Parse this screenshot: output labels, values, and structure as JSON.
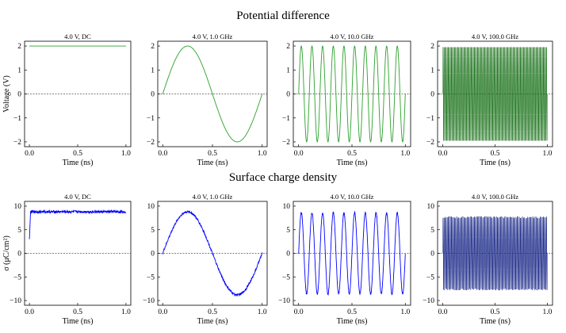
{
  "figure": {
    "top_title": "Potential difference",
    "bottom_title": "Surface charge density"
  },
  "chart_data": [
    {
      "type": "line",
      "title": "4.0 V, DC",
      "xlabel": "Time (ns)",
      "ylabel": "Voltage (V)",
      "signal": "dc",
      "amplitude": 2.0,
      "frequency_ghz": 0,
      "xlim": [
        -0.05,
        1.05
      ],
      "ylim": [
        -2.2,
        2.2
      ],
      "xticks": [
        0.0,
        0.5,
        1.0
      ],
      "yticks": [
        -2,
        -1,
        0,
        1,
        2
      ],
      "color": "#2ca02c",
      "zero_line": true
    },
    {
      "type": "line",
      "title": "4.0 V, 1.0 GHz",
      "xlabel": "Time (ns)",
      "ylabel": "",
      "signal": "sine",
      "amplitude": 2.0,
      "frequency_ghz": 1.0,
      "xlim": [
        -0.05,
        1.05
      ],
      "ylim": [
        -2.2,
        2.2
      ],
      "xticks": [
        0.0,
        0.5,
        1.0
      ],
      "yticks": [
        -2,
        -1,
        0,
        1,
        2
      ],
      "color": "#2ca02c",
      "zero_line": true
    },
    {
      "type": "line",
      "title": "4.0 V, 10.0 GHz",
      "xlabel": "Time (ns)",
      "ylabel": "",
      "signal": "sine",
      "amplitude": 2.0,
      "frequency_ghz": 10.0,
      "xlim": [
        -0.05,
        1.05
      ],
      "ylim": [
        -2.2,
        2.2
      ],
      "xticks": [
        0.0,
        0.5,
        1.0
      ],
      "yticks": [
        -2,
        -1,
        0,
        1,
        2
      ],
      "color": "#2ca02c",
      "zero_line": true
    },
    {
      "type": "line",
      "title": "4.0 V, 100.0 GHz",
      "xlabel": "Time (ns)",
      "ylabel": "",
      "signal": "sine",
      "amplitude": 2.0,
      "frequency_ghz": 100.0,
      "xlim": [
        -0.05,
        1.05
      ],
      "ylim": [
        -2.2,
        2.2
      ],
      "xticks": [
        0.0,
        0.5,
        1.0
      ],
      "yticks": [
        -2,
        -1,
        0,
        1,
        2
      ],
      "color": "#0f6b0f",
      "zero_line": true
    },
    {
      "type": "line",
      "title": "4.0 V, DC",
      "xlabel": "Time (ns)",
      "ylabel": "σ (μC/cm²)",
      "signal": "dc_rise",
      "amplitude": 8.8,
      "start_value": 3.0,
      "frequency_ghz": 0,
      "xlim": [
        -0.05,
        1.05
      ],
      "ylim": [
        -11,
        11
      ],
      "xticks": [
        0.0,
        0.5,
        1.0
      ],
      "yticks": [
        -10,
        -5,
        0,
        5,
        10
      ],
      "color": "#0000ff",
      "zero_line": true
    },
    {
      "type": "line",
      "title": "4.0 V, 1.0 GHz",
      "xlabel": "Time (ns)",
      "ylabel": "",
      "signal": "sine",
      "amplitude": 8.8,
      "frequency_ghz": 1.0,
      "xlim": [
        -0.05,
        1.05
      ],
      "ylim": [
        -11,
        11
      ],
      "xticks": [
        0.0,
        0.5,
        1.0
      ],
      "yticks": [
        -10,
        -5,
        0,
        5,
        10
      ],
      "color": "#0000ff",
      "zero_line": true
    },
    {
      "type": "line",
      "title": "4.0 V, 10.0 GHz",
      "xlabel": "Time (ns)",
      "ylabel": "",
      "signal": "sine",
      "amplitude": 8.6,
      "frequency_ghz": 10.0,
      "xlim": [
        -0.05,
        1.05
      ],
      "ylim": [
        -11,
        11
      ],
      "xticks": [
        0.0,
        0.5,
        1.0
      ],
      "yticks": [
        -10,
        -5,
        0,
        5,
        10
      ],
      "color": "#0000ff",
      "zero_line": true
    },
    {
      "type": "line",
      "title": "4.0 V, 100.0 GHz",
      "xlabel": "Time (ns)",
      "ylabel": "",
      "signal": "sine",
      "amplitude": 7.8,
      "frequency_ghz": 100.0,
      "xlim": [
        -0.05,
        1.05
      ],
      "ylim": [
        -11,
        11
      ],
      "xticks": [
        0.0,
        0.5,
        1.0
      ],
      "yticks": [
        -10,
        -5,
        0,
        5,
        10
      ],
      "color": "#0a1a80",
      "zero_line": true
    }
  ]
}
